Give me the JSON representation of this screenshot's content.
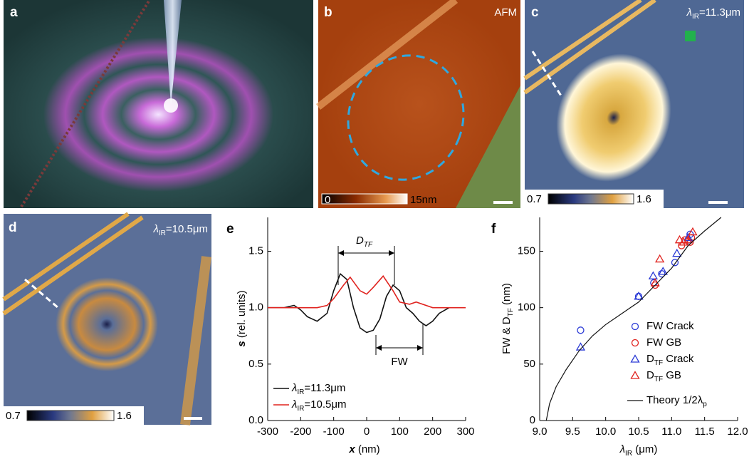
{
  "panels": {
    "a": {
      "letter": "a"
    },
    "b": {
      "letter": "b",
      "tag": "AFM",
      "colorbar": [
        "0",
        "15nm"
      ]
    },
    "c": {
      "letter": "c",
      "label": [
        "λ",
        "IR",
        "=11.3μm"
      ],
      "colorbar": [
        "0.7",
        "1.6"
      ]
    },
    "d": {
      "letter": "d",
      "label": [
        "λ",
        "IR",
        "=10.5μm"
      ],
      "colorbar": [
        "0.7",
        "1.6"
      ]
    }
  },
  "chart_data": [
    {
      "type": "line",
      "panel": "e",
      "x_label": [
        "x",
        " (nm)"
      ],
      "y_label": [
        "s",
        " (rel. units)"
      ],
      "annotations": [
        [
          "D",
          "TF"
        ],
        [
          "FW"
        ]
      ],
      "xlim": [
        -300,
        300
      ],
      "xticks": [
        -300,
        -200,
        -100,
        0,
        100,
        200,
        300
      ],
      "ylim": [
        0,
        1.8
      ],
      "yticks": [
        {
          "value": 0,
          "label": "0.0"
        },
        {
          "value": 0.5,
          "label": "0.5"
        },
        {
          "value": 1,
          "label": "1.0"
        },
        {
          "value": 1.5,
          "label": "1.5"
        }
      ],
      "legend": "lower left",
      "series": [
        {
          "name": [
            "λ",
            "IR",
            "=11.3μm"
          ],
          "color": "#111111",
          "x": [
            -300,
            -250,
            -220,
            -200,
            -180,
            -150,
            -120,
            -100,
            -80,
            -60,
            -40,
            -20,
            0,
            20,
            40,
            60,
            80,
            100,
            120,
            140,
            160,
            180,
            200,
            220,
            250
          ],
          "values": [
            1.0,
            1.0,
            1.02,
            0.98,
            0.92,
            0.88,
            0.95,
            1.15,
            1.3,
            1.25,
            1.0,
            0.82,
            0.78,
            0.8,
            0.9,
            1.1,
            1.2,
            1.15,
            1.0,
            0.95,
            0.88,
            0.84,
            0.88,
            0.95,
            1.0
          ]
        },
        {
          "name": [
            "λ",
            "IR",
            "=10.5μm"
          ],
          "color": "#e0231f",
          "x": [
            -300,
            -200,
            -150,
            -120,
            -100,
            -70,
            -50,
            -20,
            0,
            20,
            50,
            80,
            100,
            130,
            150,
            200,
            250,
            300
          ],
          "values": [
            1.0,
            1.0,
            1.0,
            1.02,
            1.08,
            1.2,
            1.27,
            1.15,
            1.12,
            1.18,
            1.28,
            1.15,
            1.05,
            1.03,
            1.05,
            1.0,
            1.0,
            1.0
          ]
        }
      ]
    },
    {
      "type": "scatter",
      "panel": "f",
      "x_label": [
        "λ",
        "IR",
        " (μm)"
      ],
      "y_label": [
        "FW & D",
        "TF",
        " (nm)"
      ],
      "xlim": [
        9,
        12
      ],
      "xticks": [
        {
          "value": 9,
          "label": "9.0"
        },
        {
          "value": 9.5,
          "label": "9.5"
        },
        {
          "value": 10,
          "label": "10.0"
        },
        {
          "value": 10.5,
          "label": "10.5"
        },
        {
          "value": 11,
          "label": "11.0"
        },
        {
          "value": 11.5,
          "label": "11.5"
        },
        {
          "value": 12,
          "label": "12.0"
        }
      ],
      "ylim": [
        0,
        180
      ],
      "yticks": [
        0,
        50,
        100,
        150
      ],
      "legend": "lower right",
      "series": [
        {
          "name": [
            "FW Crack"
          ],
          "color": "#2b3bd6",
          "marker": "circle",
          "x": [
            9.62,
            10.5,
            10.73,
            10.85,
            11.05,
            11.28,
            11.25
          ],
          "values": [
            80,
            110,
            122,
            130,
            140,
            165,
            160
          ]
        },
        {
          "name": [
            "FW GB"
          ],
          "color": "#e0231f",
          "marker": "circle",
          "x": [
            10.75,
            11.15,
            11.2,
            11.28,
            11.3
          ],
          "values": [
            120,
            155,
            160,
            158,
            162
          ]
        },
        {
          "name": [
            "D",
            "TF",
            " Crack"
          ],
          "color": "#2b3bd6",
          "marker": "triangle",
          "x": [
            9.62,
            10.5,
            10.72,
            10.87,
            11.08,
            11.25
          ],
          "values": [
            65,
            110,
            128,
            132,
            148,
            162
          ]
        },
        {
          "name": [
            "D",
            "TF",
            " GB"
          ],
          "color": "#e0231f",
          "marker": "triangle",
          "x": [
            10.75,
            10.82,
            11.12,
            11.18,
            11.25,
            11.32
          ],
          "values": [
            122,
            143,
            160,
            158,
            160,
            167
          ]
        },
        {
          "name": [
            "Theory 1/2λ",
            "p"
          ],
          "color": "#111111",
          "marker": "line",
          "x": [
            9.1,
            9.15,
            9.25,
            9.4,
            9.6,
            9.8,
            10.0,
            10.25,
            10.5,
            10.75,
            11.0,
            11.25,
            11.5,
            11.75
          ],
          "values": [
            0,
            15,
            30,
            45,
            62,
            75,
            85,
            95,
            105,
            120,
            135,
            155,
            168,
            180
          ]
        }
      ]
    }
  ]
}
